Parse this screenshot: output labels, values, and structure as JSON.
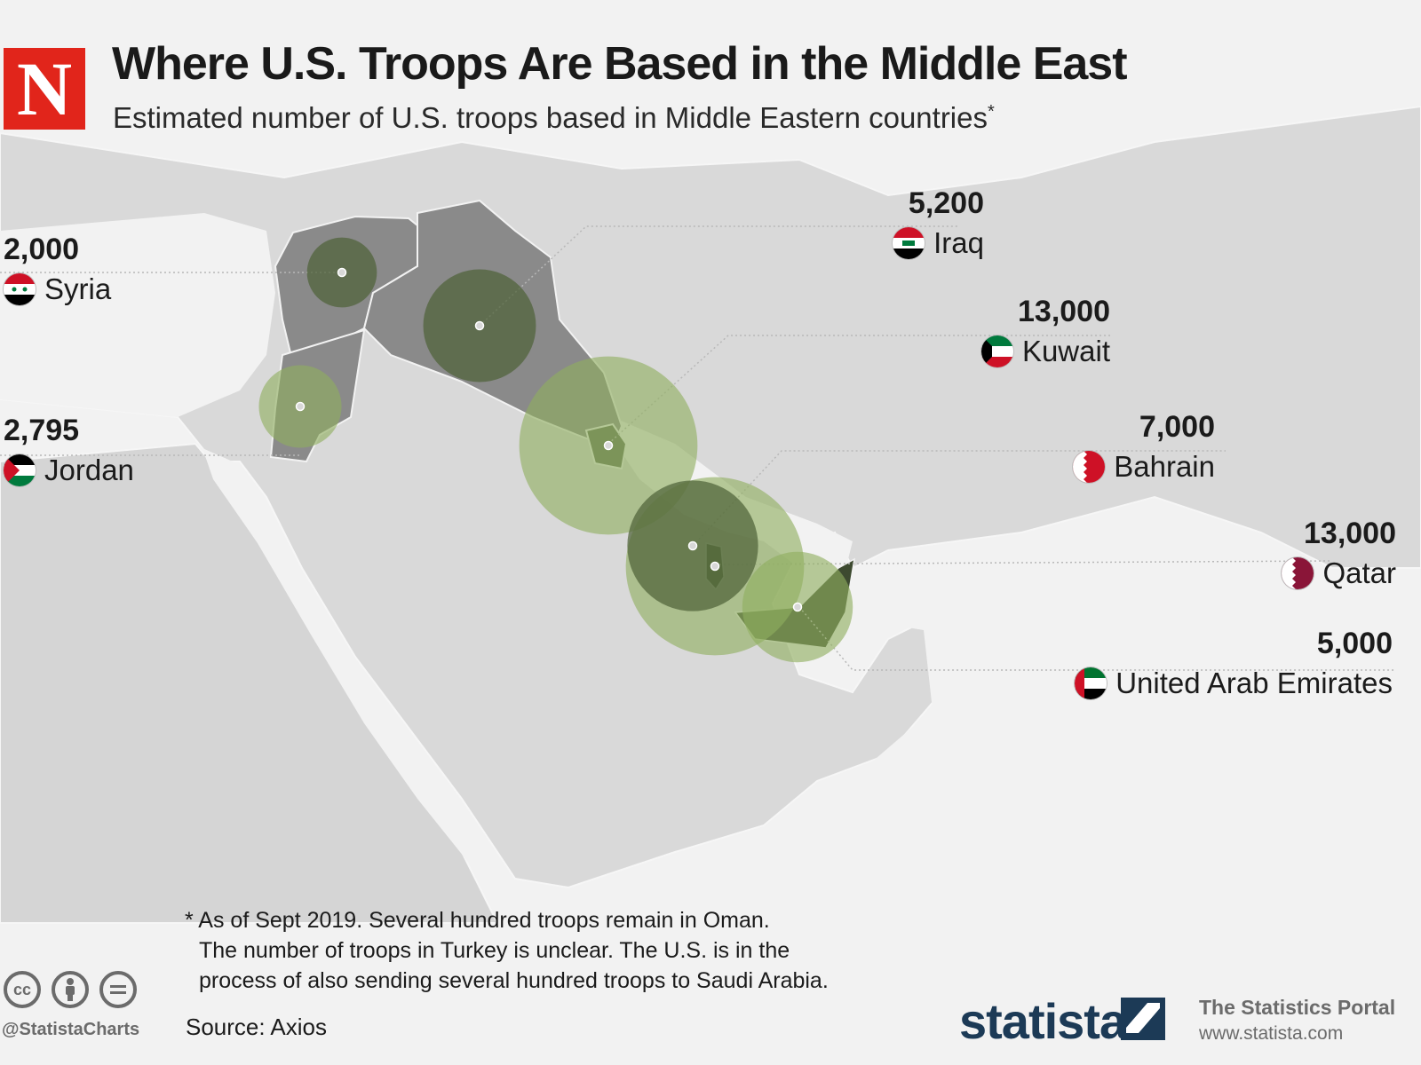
{
  "header": {
    "logo_letter": "N",
    "title": "Where U.S. Troops Are Based in the Middle East",
    "subtitle": "Estimated number of U.S. troops based in Middle Eastern countries",
    "subtitle_mark": "*"
  },
  "countries": [
    {
      "key": "syria",
      "name": "Syria",
      "troops": "2,000",
      "troops_value": 2000
    },
    {
      "key": "jordan",
      "name": "Jordan",
      "troops": "2,795",
      "troops_value": 2795
    },
    {
      "key": "iraq",
      "name": "Iraq",
      "troops": "5,200",
      "troops_value": 5200
    },
    {
      "key": "kuwait",
      "name": "Kuwait",
      "troops": "13,000",
      "troops_value": 13000
    },
    {
      "key": "bahrain",
      "name": "Bahrain",
      "troops": "7,000",
      "troops_value": 7000
    },
    {
      "key": "qatar",
      "name": "Qatar",
      "troops": "13,000",
      "troops_value": 13000
    },
    {
      "key": "uae",
      "name": "United Arab Emirates",
      "troops": "5,000",
      "troops_value": 5000
    }
  ],
  "footnote": {
    "line1": "* As of Sept 2019. Several hundred troops remain in Oman.",
    "line2": "The number of troops in Turkey is unclear. The U.S. is in the",
    "line3": "process of also sending several hundred troops to Saudi Arabia."
  },
  "footer": {
    "source": "Source: Axios",
    "handle": "@StatistaCharts",
    "brand": "statista",
    "portal_name": "The Statistics Portal",
    "portal_url": "www.statista.com",
    "cc_icons": [
      "cc-icon",
      "by-icon",
      "nd-icon"
    ]
  },
  "colors": {
    "background": "#efefef",
    "land": "#dcdcdc",
    "highlighted_land": "#8a8a8a",
    "circle_dark": "#4f6339",
    "circle_light": "#8fae5f",
    "logo_red": "#e1251b",
    "statista_blue": "#1c3a56"
  }
}
